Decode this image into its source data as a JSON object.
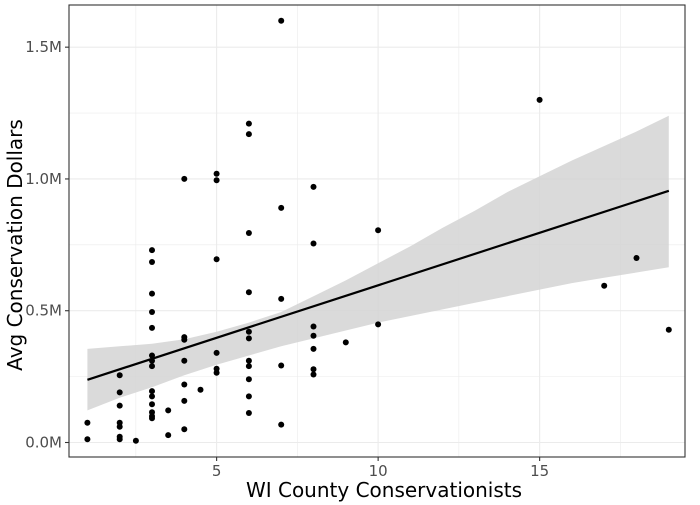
{
  "chart_data": {
    "type": "scatter",
    "xlabel": "WI County Conservationists",
    "ylabel": "Avg Conservation Dollars",
    "xlim": [
      0.43,
      19.5
    ],
    "ylim": [
      -55000,
      1660000
    ],
    "x_ticks": [
      5,
      10,
      15
    ],
    "x_tick_labels": [
      "5",
      "10",
      "15"
    ],
    "y_ticks": [
      0,
      500000,
      1000000,
      1500000
    ],
    "y_tick_labels": [
      "0.0M",
      "0.5M",
      "1.0M",
      "1.5M"
    ],
    "grid": true,
    "points": [
      [
        1,
        75000
      ],
      [
        1,
        12000
      ],
      [
        2,
        255000
      ],
      [
        2,
        190000
      ],
      [
        2,
        140000
      ],
      [
        2,
        75000
      ],
      [
        2,
        60000
      ],
      [
        2,
        22000
      ],
      [
        2,
        12000
      ],
      [
        2.5,
        7000
      ],
      [
        3,
        730000
      ],
      [
        3,
        685000
      ],
      [
        3,
        565000
      ],
      [
        3,
        495000
      ],
      [
        3,
        435000
      ],
      [
        3,
        330000
      ],
      [
        3,
        310000
      ],
      [
        3,
        290000
      ],
      [
        3,
        195000
      ],
      [
        3,
        175000
      ],
      [
        3,
        145000
      ],
      [
        3,
        115000
      ],
      [
        3,
        100000
      ],
      [
        3,
        92000
      ],
      [
        3.5,
        122000
      ],
      [
        3.5,
        28000
      ],
      [
        4,
        1000000
      ],
      [
        4,
        400000
      ],
      [
        4,
        390000
      ],
      [
        4,
        310000
      ],
      [
        4,
        220000
      ],
      [
        4,
        158000
      ],
      [
        4,
        50000
      ],
      [
        4.5,
        200000
      ],
      [
        5,
        1020000
      ],
      [
        5,
        995000
      ],
      [
        5,
        695000
      ],
      [
        5,
        340000
      ],
      [
        5,
        280000
      ],
      [
        5,
        265000
      ],
      [
        6,
        1210000
      ],
      [
        6,
        1170000
      ],
      [
        6,
        795000
      ],
      [
        6,
        570000
      ],
      [
        6,
        420000
      ],
      [
        6,
        395000
      ],
      [
        6,
        310000
      ],
      [
        6,
        290000
      ],
      [
        6,
        240000
      ],
      [
        6,
        175000
      ],
      [
        6,
        112000
      ],
      [
        7,
        1600000
      ],
      [
        7,
        890000
      ],
      [
        7,
        545000
      ],
      [
        7,
        292000
      ],
      [
        7,
        68000
      ],
      [
        8,
        970000
      ],
      [
        8,
        755000
      ],
      [
        8,
        440000
      ],
      [
        8,
        405000
      ],
      [
        8,
        355000
      ],
      [
        8,
        278000
      ],
      [
        8,
        258000
      ],
      [
        9,
        380000
      ],
      [
        10,
        805000
      ],
      [
        10,
        448000
      ],
      [
        15,
        1300000
      ],
      [
        17,
        595000
      ],
      [
        18,
        700000
      ],
      [
        19,
        428000
      ]
    ],
    "trend_line": {
      "x": [
        1,
        19
      ],
      "y": [
        238000,
        955000
      ]
    },
    "confidence_band": {
      "x": [
        1,
        2,
        3,
        4,
        5,
        6,
        7,
        8,
        9,
        10,
        11,
        12,
        13,
        14,
        15,
        16,
        17,
        18,
        19
      ],
      "upper": [
        355000,
        365000,
        375000,
        392000,
        420000,
        455000,
        495000,
        555000,
        615000,
        680000,
        745000,
        815000,
        880000,
        950000,
        1010000,
        1070000,
        1125000,
        1180000,
        1240000
      ],
      "lower": [
        122000,
        170000,
        210000,
        255000,
        295000,
        330000,
        365000,
        395000,
        425000,
        455000,
        480000,
        505000,
        530000,
        555000,
        580000,
        605000,
        625000,
        645000,
        665000
      ]
    },
    "colors": {
      "points": "#000000",
      "trend_line": "#000000",
      "band": "#d3d3d3",
      "grid": "#ebebeb",
      "panel_border": "#333333",
      "tick_text": "#4d4d4d"
    }
  }
}
